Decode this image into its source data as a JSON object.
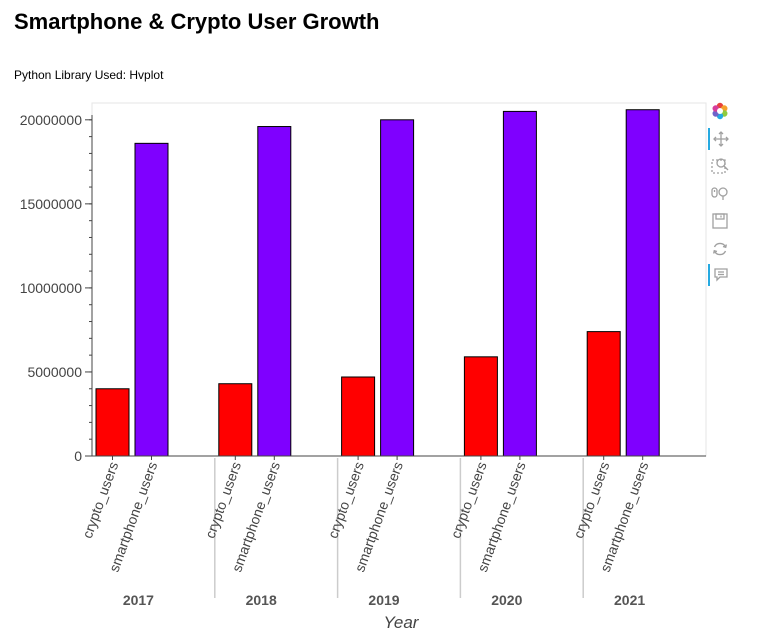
{
  "page": {
    "title": "Smartphone & Crypto User Growth",
    "subtitle": "Python Library Used: Hvplot"
  },
  "toolbar": {
    "tools": [
      "bokeh-logo-icon",
      "pan-icon",
      "box-zoom-icon",
      "wheel-zoom-icon",
      "save-icon",
      "reset-icon",
      "hover-icon"
    ]
  },
  "chart_data": {
    "type": "bar",
    "title": "",
    "xlabel": "Year",
    "ylabel": "",
    "ylim": [
      0,
      21000000
    ],
    "yticks": [
      0,
      5000000,
      10000000,
      15000000,
      20000000
    ],
    "ytick_labels": [
      "0",
      "5000000",
      "10000000",
      "15000000",
      "20000000"
    ],
    "grid": false,
    "categories": [
      "2017",
      "2018",
      "2019",
      "2020",
      "2021"
    ],
    "subcategories": [
      "crypto_users",
      "smartphone_users"
    ],
    "series": [
      {
        "name": "crypto_users",
        "color": "#ff0000",
        "values": [
          4000000,
          4300000,
          4700000,
          5900000,
          7400000
        ]
      },
      {
        "name": "smartphone_users",
        "color": "#7f00ff",
        "values": [
          18600000,
          19600000,
          20000000,
          20500000,
          20600000
        ]
      }
    ]
  }
}
